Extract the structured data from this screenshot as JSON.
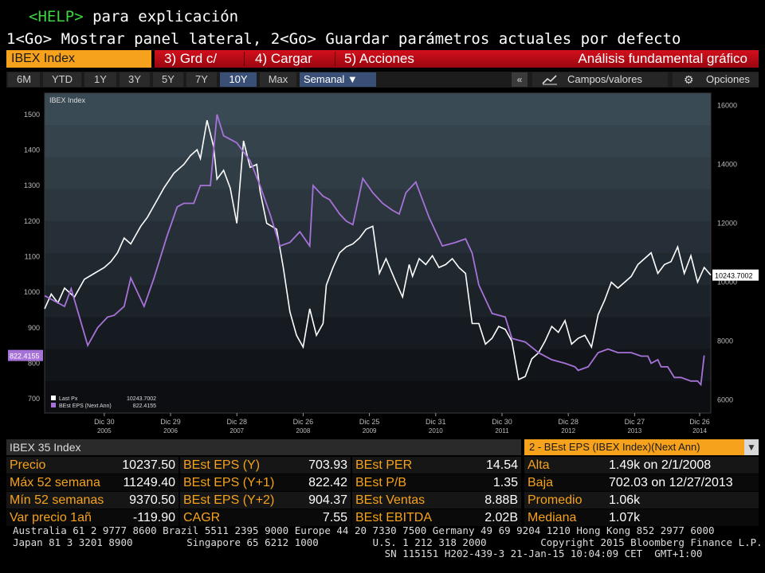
{
  "help": {
    "key": "<HELP>",
    "text": " para explicación"
  },
  "go_line": "1<Go> Mostrar panel lateral, 2<Go> Guardar parámetros actuales por defecto",
  "toolbar": {
    "ticker": "IBEX Index",
    "buttons": [
      "3) Grd c/",
      "4) Cargar",
      "5) Acciones"
    ],
    "title": "Análisis fundamental gráfico"
  },
  "periods": {
    "items": [
      "6M",
      "YTD",
      "1Y",
      "3Y",
      "5Y",
      "7Y",
      "10Y",
      "Max"
    ],
    "active": "10Y",
    "frequency": "Semanal ▼",
    "collapse": "«",
    "fields": "Campos/valores",
    "options": "Opciones"
  },
  "chart_data": {
    "type": "line",
    "title": "IBEX Index",
    "x_ticks": [
      {
        "label": "Dic 30",
        "year": "2005"
      },
      {
        "label": "Dic 29",
        "year": "2006"
      },
      {
        "label": "Dic 28",
        "year": "2007"
      },
      {
        "label": "Dic 26",
        "year": "2008"
      },
      {
        "label": "Dic 25",
        "year": "2009"
      },
      {
        "label": "Dic 31",
        "year": "2010"
      },
      {
        "label": "Dic 30",
        "year": "2011"
      },
      {
        "label": "Dic 28",
        "year": "2012"
      },
      {
        "label": "Dic 27",
        "year": "2013"
      },
      {
        "label": "Dic 26",
        "year": "2014"
      }
    ],
    "x_range": [
      2005.0,
      2015.05
    ],
    "left_axis": {
      "ticks": [
        700,
        800,
        900,
        1000,
        1100,
        1200,
        1300,
        1400,
        1500
      ],
      "ylim": [
        660,
        1560
      ]
    },
    "right_axis": {
      "ticks": [
        6000,
        8000,
        10000,
        12000,
        14000,
        16000
      ],
      "ylim": [
        5560,
        16420
      ]
    },
    "series": [
      {
        "name": "Last Px",
        "legend_value": "10243.7002",
        "axis": "right",
        "color": "#ffffff",
        "x": [
          2005.0,
          2005.1,
          2005.2,
          2005.3,
          2005.45,
          2005.6,
          2005.75,
          2005.9,
          2006.0,
          2006.1,
          2006.2,
          2006.3,
          2006.45,
          2006.55,
          2006.7,
          2006.8,
          2006.95,
          2007.1,
          2007.2,
          2007.3,
          2007.35,
          2007.45,
          2007.55,
          2007.6,
          2007.7,
          2007.8,
          2007.9,
          2008.0,
          2008.1,
          2008.2,
          2008.25,
          2008.35,
          2008.5,
          2008.6,
          2008.7,
          2008.8,
          2008.9,
          2009.0,
          2009.1,
          2009.2,
          2009.25,
          2009.35,
          2009.45,
          2009.55,
          2009.65,
          2009.75,
          2009.85,
          2009.95,
          2010.05,
          2010.15,
          2010.3,
          2010.4,
          2010.5,
          2010.55,
          2010.65,
          2010.75,
          2010.85,
          2010.95,
          2011.05,
          2011.15,
          2011.25,
          2011.35,
          2011.45,
          2011.55,
          2011.65,
          2011.75,
          2011.85,
          2011.95,
          2012.05,
          2012.15,
          2012.25,
          2012.35,
          2012.45,
          2012.55,
          2012.65,
          2012.75,
          2012.85,
          2012.95,
          2013.05,
          2013.15,
          2013.25,
          2013.35,
          2013.45,
          2013.55,
          2013.65,
          2013.75,
          2013.85,
          2013.95,
          2014.05,
          2014.15,
          2014.25,
          2014.35,
          2014.45,
          2014.55,
          2014.65,
          2014.75,
          2014.85,
          2014.95,
          2015.05
        ],
        "values": [
          9100,
          9600,
          9300,
          9800,
          9500,
          10100,
          10300,
          10500,
          10700,
          11000,
          11500,
          11300,
          11900,
          12200,
          12800,
          13200,
          13700,
          14000,
          14300,
          14500,
          14200,
          15500,
          14600,
          13500,
          13800,
          13200,
          12000,
          14800,
          13900,
          14000,
          13100,
          12000,
          11800,
          10500,
          9000,
          8200,
          7800,
          9100,
          8200,
          8600,
          9900,
          10500,
          11000,
          11200,
          11300,
          11500,
          11800,
          11900,
          10300,
          10800,
          10000,
          9500,
          10600,
          10200,
          10800,
          10600,
          10900,
          10500,
          10600,
          10800,
          10500,
          10300,
          8600,
          8600,
          7900,
          8100,
          8500,
          8400,
          8000,
          6700,
          6800,
          7400,
          7600,
          8000,
          8500,
          8300,
          8700,
          7900,
          8100,
          8200,
          7800,
          8900,
          9400,
          10000,
          9800,
          10000,
          10200,
          10600,
          10800,
          11000,
          10300,
          10600,
          10700,
          11200,
          10300,
          10900,
          10000,
          10500,
          10243
        ]
      },
      {
        "name": "BEst EPS (Next Ann)",
        "legend_value": "822.4155",
        "axis": "left",
        "color": "#a772d8",
        "x": [
          2005.0,
          2005.3,
          2005.4,
          2005.65,
          2005.8,
          2005.95,
          2006.05,
          2006.2,
          2006.3,
          2006.5,
          2006.65,
          2006.85,
          2007.0,
          2007.1,
          2007.25,
          2007.35,
          2007.5,
          2007.6,
          2007.7,
          2007.9,
          2008.1,
          2008.25,
          2008.4,
          2008.55,
          2008.7,
          2008.85,
          2009.0,
          2009.05,
          2009.2,
          2009.3,
          2009.45,
          2009.55,
          2009.65,
          2009.8,
          2009.95,
          2010.1,
          2010.25,
          2010.35,
          2010.45,
          2010.6,
          2010.8,
          2011.0,
          2011.2,
          2011.35,
          2011.45,
          2011.55,
          2011.75,
          2011.95,
          2012.05,
          2012.25,
          2012.45,
          2012.65,
          2012.85,
          2013.0,
          2013.05,
          2013.2,
          2013.35,
          2013.5,
          2013.65,
          2013.85,
          2014.0,
          2014.1,
          2014.15,
          2014.25,
          2014.3,
          2014.4,
          2014.5,
          2014.6,
          2014.75,
          2014.85,
          2014.9,
          2014.95
        ],
        "values": [
          990,
          960,
          1010,
          850,
          900,
          930,
          935,
          960,
          1040,
          960,
          1040,
          1160,
          1240,
          1250,
          1250,
          1300,
          1300,
          1500,
          1440,
          1420,
          1370,
          1300,
          1220,
          1130,
          1140,
          1170,
          1130,
          1300,
          1270,
          1260,
          1220,
          1200,
          1190,
          1320,
          1280,
          1250,
          1230,
          1220,
          1280,
          1310,
          1210,
          1130,
          1140,
          1150,
          1110,
          1020,
          940,
          930,
          870,
          860,
          830,
          810,
          800,
          790,
          780,
          790,
          830,
          840,
          830,
          830,
          820,
          820,
          800,
          810,
          790,
          790,
          760,
          760,
          750,
          750,
          740,
          822
        ]
      }
    ],
    "right_label": "10243.7002",
    "left_label": "822.4155"
  },
  "left_table": {
    "title": "IBEX 35 Index",
    "rows": [
      {
        "label": "Precio",
        "value": "10237.50"
      },
      {
        "label": "Máx 52 semana",
        "value": "11249.40"
      },
      {
        "label": "Mín 52 semanas",
        "value": "9370.50"
      },
      {
        "label": "Var precio 1añ",
        "value": "-119.90"
      }
    ]
  },
  "mid_table": {
    "rows": [
      {
        "label": "BEst EPS (Y)",
        "value": "703.93"
      },
      {
        "label": "BEst EPS (Y+1)",
        "value": "822.42"
      },
      {
        "label": "BEst EPS (Y+2)",
        "value": "904.37"
      },
      {
        "label": "CAGR",
        "value": "7.55"
      }
    ]
  },
  "mid2_table": {
    "rows": [
      {
        "label": "BEst PER",
        "value": "14.54"
      },
      {
        "label": "BEst P/B",
        "value": "1.35"
      },
      {
        "label": "BEst Ventas",
        "value": "8.88B"
      },
      {
        "label": "BEst EBITDA",
        "value": "2.02B"
      }
    ]
  },
  "right_table": {
    "title": "2 - BEst EPS (IBEX Index)(Next Ann)",
    "rows": [
      {
        "label": "Alta",
        "value": "1.49k on 2/1/2008"
      },
      {
        "label": "Baja",
        "value": "702.03 on 12/27/2013"
      },
      {
        "label": "Promedio",
        "value": "1.06k"
      },
      {
        "label": "Mediana",
        "value": "1.07k"
      }
    ]
  },
  "footer": {
    "line1": "Australia 61 2 9777 8600 Brazil 5511 2395 9000 Europe 44 20 7330 7500 Germany 49 69 9204 1210 Hong Kong 852 2977 6000",
    "line2": "Japan 81 3 3201 8900         Singapore 65 6212 1000         U.S. 1 212 318 2000         Copyright 2015 Bloomberg Finance L.P.",
    "line3": "                                                              SN 115151 H202-439-3 21-Jan-15 10:04:09 CET  GMT+1:00"
  }
}
